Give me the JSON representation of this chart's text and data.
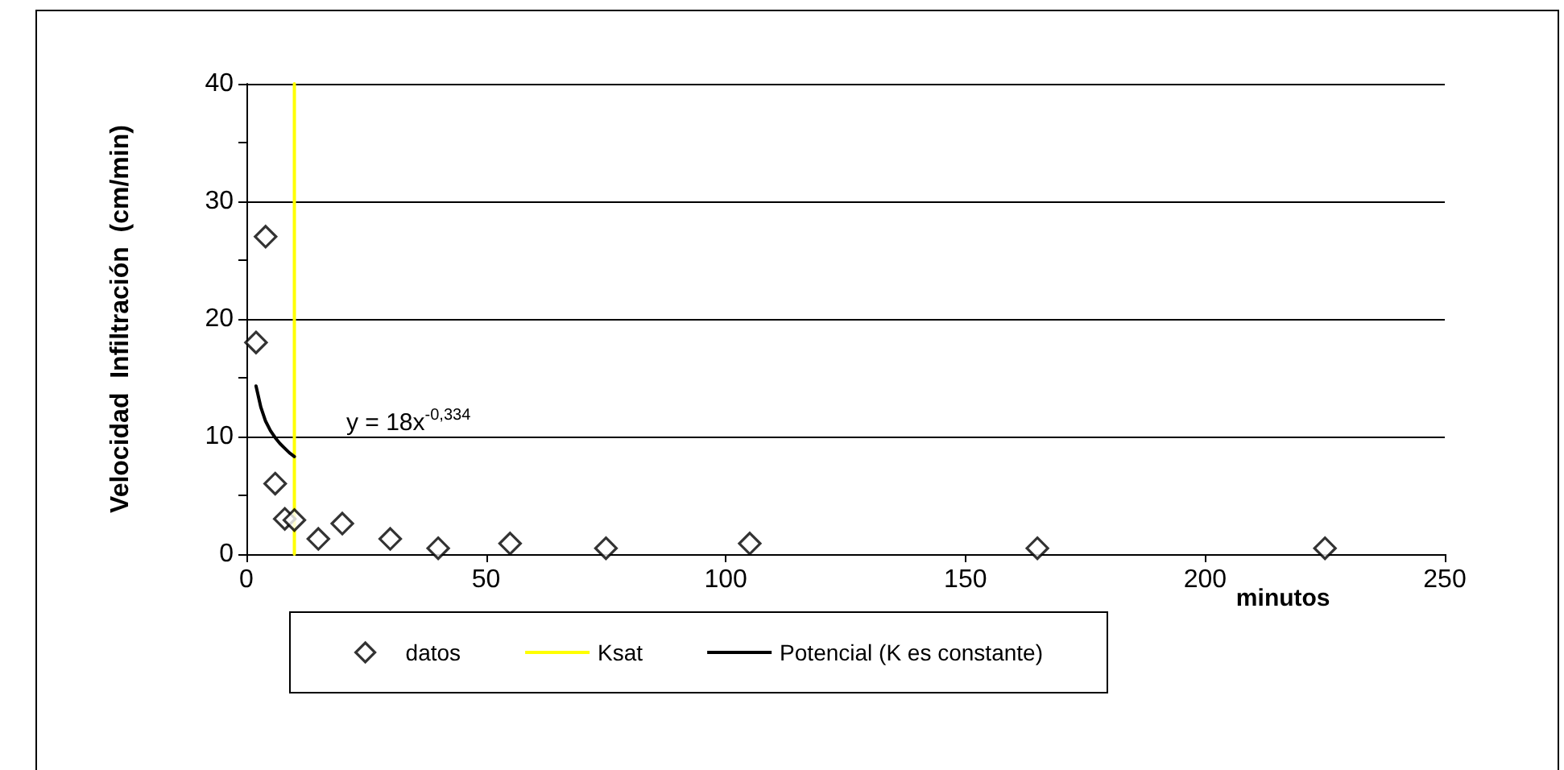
{
  "chart_data": {
    "type": "scatter",
    "xlabel": "minutos",
    "ylabel": "Velocidad  Infiltración  (cm/min)",
    "annotations": [
      "y = 18x$^{-0,334}$"
    ],
    "xlim": [
      0,
      250
    ],
    "xticks": [
      0,
      50,
      100,
      150,
      200,
      250
    ],
    "ylim": [
      0,
      40
    ],
    "yticks": [
      0,
      {
        "value": 5,
        "label": null
      },
      10,
      {
        "value": 15,
        "label": null
      },
      20,
      {
        "value": 25,
        "label": null
      },
      30,
      {
        "value": 35,
        "label": null
      },
      40
    ],
    "grid": "y",
    "legend": "bottom",
    "marker": "diamond",
    "series": [
      {
        "name": "datos",
        "color": "#000000",
        "x": [
          2,
          4,
          6,
          8,
          10,
          15,
          20,
          30,
          40,
          55,
          75,
          105,
          165,
          225
        ],
        "values": [
          18,
          27,
          6,
          3,
          2.9,
          1.3,
          2.6,
          1.3,
          0.5,
          0.9,
          0.5,
          0.9,
          0.5,
          0.5
        ]
      },
      {
        "name": "Ksat",
        "type": "line",
        "marker": "none",
        "color": "#ffff00",
        "x": [
          10,
          10
        ],
        "values": [
          0,
          40
        ]
      },
      {
        "name": "Potencial (K es constante)",
        "type": "line",
        "marker": "none",
        "color": "#000000",
        "x": [
          2,
          3,
          4,
          5,
          6,
          7,
          8,
          9,
          10
        ],
        "values": [
          14.3,
          12.5,
          11.3,
          10.5,
          9.9,
          9.4,
          9.0,
          8.6,
          8.3
        ]
      }
    ]
  }
}
